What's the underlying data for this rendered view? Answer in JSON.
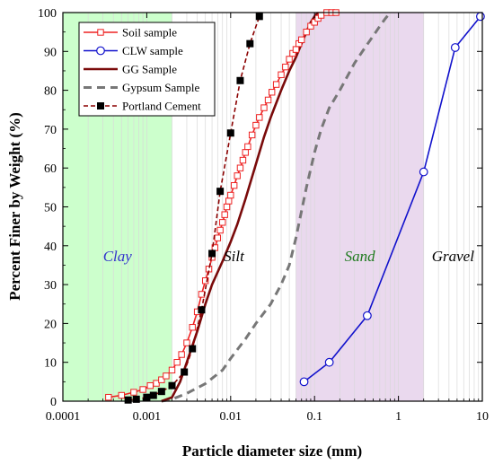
{
  "chart_data": {
    "type": "line",
    "xlabel": "Particle diameter size (mm)",
    "ylabel": "Percent Finer by Weight (%)",
    "xscale": "log",
    "xlim": [
      0.0001,
      10
    ],
    "ylim": [
      0,
      100
    ],
    "x_ticks": [
      {
        "value": 0.0001,
        "label": "0.0001"
      },
      {
        "value": 0.001,
        "label": "0.001"
      },
      {
        "value": 0.01,
        "label": "0.01"
      },
      {
        "value": 0.1,
        "label": "0.1"
      },
      {
        "value": 1,
        "label": "1"
      },
      {
        "value": 10,
        "label": "10"
      }
    ],
    "y_ticks": [
      0,
      10,
      20,
      30,
      40,
      50,
      60,
      70,
      80,
      90,
      100
    ],
    "grid": "vertical log minor lines",
    "legend_position": "top-left",
    "zones": [
      {
        "label": "Clay",
        "from": 0.0001,
        "to": 0.002,
        "fill": "#ccffcc",
        "label_color": "#3333cc"
      },
      {
        "label": "Silt",
        "from": 0.002,
        "to": 0.06,
        "fill": "none",
        "label_color": "#000000"
      },
      {
        "label": "Sand",
        "from": 0.06,
        "to": 2,
        "fill": "#ead9ee",
        "label_color": "#1f7a1f"
      },
      {
        "label": "Gravel",
        "from": 2,
        "to": 10,
        "fill": "none",
        "label_color": "#000000"
      }
    ],
    "series": [
      {
        "name": "Soil sample",
        "color": "#ee2222",
        "line": "solid",
        "marker": "open-square",
        "points": [
          [
            0.00035,
            1
          ],
          [
            0.0005,
            1.5
          ],
          [
            0.0007,
            2.3
          ],
          [
            0.0009,
            3
          ],
          [
            0.0011,
            4
          ],
          [
            0.0013,
            4.6
          ],
          [
            0.0015,
            5.5
          ],
          [
            0.0017,
            6.5
          ],
          [
            0.002,
            8
          ],
          [
            0.0023,
            10
          ],
          [
            0.0026,
            12
          ],
          [
            0.003,
            15
          ],
          [
            0.0035,
            19
          ],
          [
            0.004,
            23
          ],
          [
            0.0045,
            27.5
          ],
          [
            0.005,
            31
          ],
          [
            0.0055,
            34
          ],
          [
            0.006,
            37
          ],
          [
            0.0065,
            39.5
          ],
          [
            0.007,
            42
          ],
          [
            0.0075,
            44
          ],
          [
            0.008,
            46
          ],
          [
            0.0085,
            48
          ],
          [
            0.009,
            50
          ],
          [
            0.0095,
            51.5
          ],
          [
            0.01,
            53
          ],
          [
            0.011,
            55.5
          ],
          [
            0.012,
            58
          ],
          [
            0.013,
            60
          ],
          [
            0.014,
            62
          ],
          [
            0.015,
            64
          ],
          [
            0.016,
            65.5
          ],
          [
            0.018,
            68.5
          ],
          [
            0.02,
            71
          ],
          [
            0.022,
            73
          ],
          [
            0.025,
            75.5
          ],
          [
            0.028,
            77.5
          ],
          [
            0.031,
            79.5
          ],
          [
            0.035,
            81.5
          ],
          [
            0.04,
            84
          ],
          [
            0.045,
            86
          ],
          [
            0.05,
            88
          ],
          [
            0.055,
            89.5
          ],
          [
            0.06,
            90.5
          ],
          [
            0.065,
            92
          ],
          [
            0.07,
            93
          ],
          [
            0.08,
            95
          ],
          [
            0.09,
            96.5
          ],
          [
            0.1,
            97.5
          ],
          [
            0.11,
            98.5
          ],
          [
            0.12,
            99.3
          ],
          [
            0.14,
            100
          ],
          [
            0.16,
            100
          ],
          [
            0.18,
            100
          ]
        ]
      },
      {
        "name": "CLW sample",
        "color": "#1111cc",
        "line": "solid",
        "marker": "open-circle",
        "points": [
          [
            0.075,
            5
          ],
          [
            0.15,
            10
          ],
          [
            0.425,
            22
          ],
          [
            2,
            59
          ],
          [
            4.75,
            91
          ],
          [
            9.5,
            99
          ]
        ]
      },
      {
        "name": "GG Sample",
        "color": "#7a0a0a",
        "line": "solid",
        "marker": "none",
        "points": [
          [
            0.0015,
            0
          ],
          [
            0.002,
            1
          ],
          [
            0.0025,
            5
          ],
          [
            0.003,
            10
          ],
          [
            0.004,
            18
          ],
          [
            0.005,
            25
          ],
          [
            0.006,
            30
          ],
          [
            0.008,
            36
          ],
          [
            0.01,
            41
          ],
          [
            0.012,
            45.5
          ],
          [
            0.015,
            52
          ],
          [
            0.02,
            61
          ],
          [
            0.025,
            68
          ],
          [
            0.03,
            73
          ],
          [
            0.04,
            80
          ],
          [
            0.05,
            85
          ],
          [
            0.06,
            88.5
          ],
          [
            0.07,
            92
          ],
          [
            0.08,
            95
          ],
          [
            0.09,
            97.5
          ],
          [
            0.1,
            99
          ],
          [
            0.11,
            100
          ]
        ]
      },
      {
        "name": "Gypsum Sample",
        "color": "#777777",
        "line": "dashed",
        "marker": "none",
        "points": [
          [
            0.0015,
            0
          ],
          [
            0.002,
            0.5
          ],
          [
            0.003,
            2
          ],
          [
            0.005,
            4.5
          ],
          [
            0.008,
            8
          ],
          [
            0.01,
            11
          ],
          [
            0.015,
            16
          ],
          [
            0.02,
            20
          ],
          [
            0.03,
            25
          ],
          [
            0.04,
            30
          ],
          [
            0.05,
            35
          ],
          [
            0.06,
            42
          ],
          [
            0.08,
            55
          ],
          [
            0.1,
            64
          ],
          [
            0.12,
            70
          ],
          [
            0.15,
            75.5
          ],
          [
            0.2,
            80
          ],
          [
            0.3,
            87
          ],
          [
            0.4,
            91
          ],
          [
            0.5,
            94
          ],
          [
            0.6,
            96.5
          ],
          [
            0.7,
            98.5
          ],
          [
            0.8,
            100
          ]
        ]
      },
      {
        "name": "Portland Cement",
        "color": "#8b0000",
        "line": "dashed",
        "marker": "filled-square",
        "points": [
          [
            0.0006,
            0.3
          ],
          [
            0.00075,
            0.5
          ],
          [
            0.001,
            1
          ],
          [
            0.0012,
            1.5
          ],
          [
            0.0015,
            2.5
          ],
          [
            0.002,
            4
          ],
          [
            0.0028,
            7.5
          ],
          [
            0.0035,
            13.5
          ],
          [
            0.0045,
            23.5
          ],
          [
            0.006,
            38
          ],
          [
            0.0075,
            54
          ],
          [
            0.01,
            69
          ],
          [
            0.013,
            82.5
          ],
          [
            0.017,
            92
          ],
          [
            0.022,
            99
          ]
        ],
        "marker_points": [
          [
            0.0006,
            0.3
          ],
          [
            0.00075,
            0.5
          ],
          [
            0.001,
            1
          ],
          [
            0.0012,
            1.5
          ],
          [
            0.0015,
            2.5
          ],
          [
            0.002,
            4
          ],
          [
            0.0028,
            7.5
          ],
          [
            0.0035,
            13.5
          ],
          [
            0.0045,
            23.5
          ],
          [
            0.006,
            38
          ],
          [
            0.0075,
            54
          ],
          [
            0.01,
            69
          ],
          [
            0.013,
            82.5
          ],
          [
            0.017,
            92
          ],
          [
            0.022,
            99
          ]
        ]
      }
    ]
  }
}
